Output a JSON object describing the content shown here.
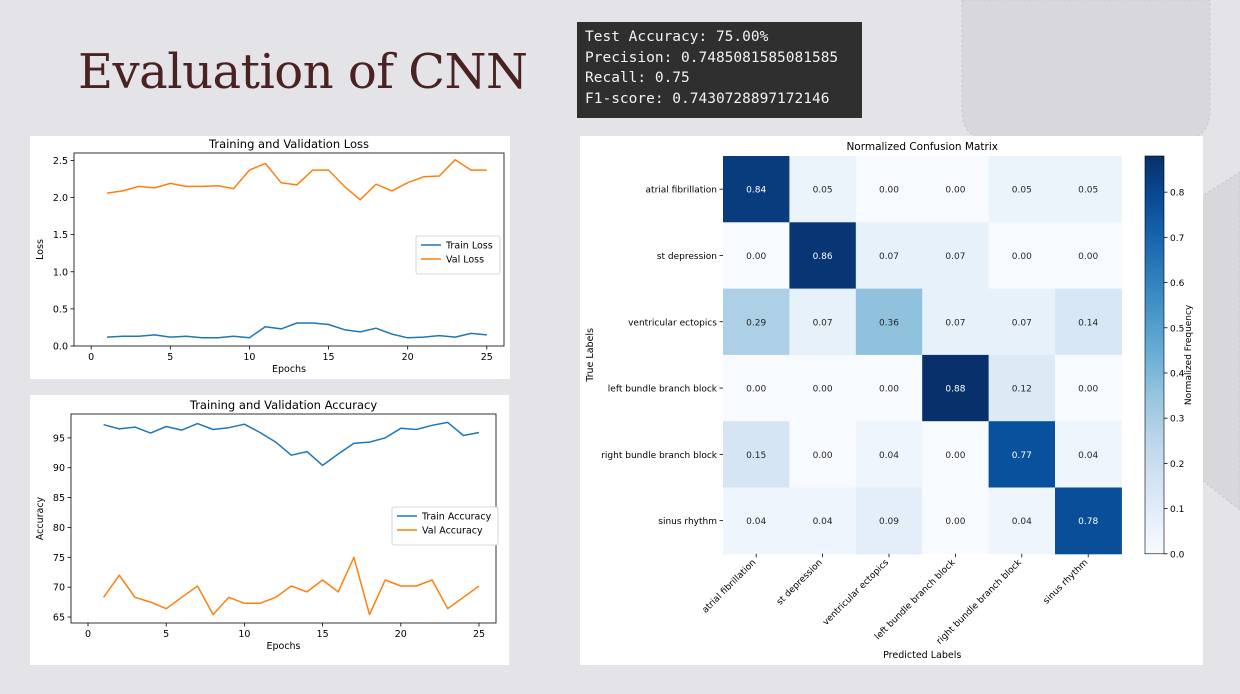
{
  "slide": {
    "title": "Evaluation of CNN"
  },
  "metrics": {
    "lines": [
      "Test Accuracy: 75.00%",
      "Precision: 0.7485081585081585",
      "Recall: 0.75",
      "F1-score: 0.7430728897172146"
    ]
  },
  "colors": {
    "train": "#1f77b4",
    "val": "#ff7f0e",
    "background": "#e4e4e8"
  },
  "chart_data": [
    {
      "type": "line",
      "title": "Training and Validation Loss",
      "xlabel": "Epochs",
      "ylabel": "Loss",
      "xlim": [
        0,
        25
      ],
      "ylim": [
        0,
        2.6
      ],
      "xticks": [
        0,
        5,
        10,
        15,
        20,
        25
      ],
      "yticks": [
        0.0,
        0.5,
        1.0,
        1.5,
        2.0,
        2.5
      ],
      "ytick_labels": [
        "0.0",
        "0.5",
        "1.0",
        "1.5",
        "2.0",
        "2.5"
      ],
      "legend": "center-right",
      "x": [
        1,
        2,
        3,
        4,
        5,
        6,
        7,
        8,
        9,
        10,
        11,
        12,
        13,
        14,
        15,
        16,
        17,
        18,
        19,
        20,
        21,
        22,
        23,
        24,
        25
      ],
      "series": [
        {
          "name": "Train Loss",
          "color": "#1f77b4",
          "values": [
            0.12,
            0.13,
            0.13,
            0.15,
            0.12,
            0.13,
            0.11,
            0.11,
            0.13,
            0.11,
            0.26,
            0.23,
            0.31,
            0.31,
            0.29,
            0.22,
            0.19,
            0.24,
            0.16,
            0.11,
            0.12,
            0.14,
            0.12,
            0.17,
            0.15
          ]
        },
        {
          "name": "Val Loss",
          "color": "#ff7f0e",
          "values": [
            2.06,
            2.09,
            2.15,
            2.13,
            2.19,
            2.15,
            2.15,
            2.16,
            2.12,
            2.37,
            2.46,
            2.2,
            2.17,
            2.37,
            2.37,
            2.15,
            1.97,
            2.18,
            2.09,
            2.2,
            2.28,
            2.29,
            2.51,
            2.37,
            2.37
          ]
        }
      ]
    },
    {
      "type": "line",
      "title": "Training and Validation Accuracy",
      "xlabel": "Epochs",
      "ylabel": "Accuracy",
      "xlim": [
        0,
        25
      ],
      "ylim": [
        64,
        99
      ],
      "xticks": [
        0,
        5,
        10,
        15,
        20,
        25
      ],
      "yticks": [
        65,
        70,
        75,
        80,
        85,
        90,
        95
      ],
      "ytick_labels": [
        "65",
        "70",
        "75",
        "80",
        "85",
        "90",
        "95"
      ],
      "legend": "center-right",
      "x": [
        1,
        2,
        3,
        4,
        5,
        6,
        7,
        8,
        9,
        10,
        11,
        12,
        13,
        14,
        15,
        16,
        17,
        18,
        19,
        20,
        21,
        22,
        23,
        24,
        25
      ],
      "series": [
        {
          "name": "Train Accuracy",
          "color": "#1f77b4",
          "values": [
            97.2,
            96.5,
            96.8,
            95.8,
            96.9,
            96.3,
            97.4,
            96.4,
            96.7,
            97.3,
            95.9,
            94.3,
            92.1,
            92.7,
            90.4,
            92.3,
            94.1,
            94.3,
            95.0,
            96.6,
            96.4,
            97.1,
            97.6,
            95.4,
            95.9
          ]
        },
        {
          "name": "Val Accuracy",
          "color": "#ff7f0e",
          "values": [
            68.3,
            72.0,
            68.3,
            67.5,
            66.4,
            68.3,
            70.2,
            65.4,
            68.3,
            67.3,
            67.3,
            68.3,
            70.2,
            69.2,
            71.2,
            69.2,
            75.0,
            65.4,
            71.2,
            70.2,
            70.2,
            71.2,
            66.4,
            68.3,
            70.2
          ]
        }
      ]
    },
    {
      "type": "heatmap",
      "title": "Normalized Confusion Matrix",
      "xlabel": "Predicted Labels",
      "ylabel": "True Labels",
      "colorbar_label": "Normalized Frequency",
      "colorbar_range": [
        0,
        0.88
      ],
      "colorbar_ticks": [
        0.0,
        0.1,
        0.2,
        0.3,
        0.4,
        0.5,
        0.6,
        0.7,
        0.8
      ],
      "colorbar_tick_labels": [
        "0.0",
        "0.1",
        "0.2",
        "0.3",
        "0.4",
        "0.5",
        "0.6",
        "0.7",
        "0.8"
      ],
      "colormap": "Blues",
      "labels": [
        "atrial fibrillation",
        "st depression",
        "ventricular ectopics",
        "left bundle branch block",
        "right bundle branch block",
        "sinus rhythm"
      ],
      "matrix": [
        [
          0.84,
          0.05,
          0.0,
          0.0,
          0.05,
          0.05
        ],
        [
          0.0,
          0.86,
          0.07,
          0.07,
          0.0,
          0.0
        ],
        [
          0.29,
          0.07,
          0.36,
          0.07,
          0.07,
          0.14
        ],
        [
          0.0,
          0.0,
          0.0,
          0.88,
          0.12,
          0.0
        ],
        [
          0.15,
          0.0,
          0.04,
          0.0,
          0.77,
          0.04
        ],
        [
          0.04,
          0.04,
          0.09,
          0.0,
          0.04,
          0.78
        ]
      ],
      "cell_labels": [
        [
          "0.84",
          "0.05",
          "0.00",
          "0.00",
          "0.05",
          "0.05"
        ],
        [
          "0.00",
          "0.86",
          "0.07",
          "0.07",
          "0.00",
          "0.00"
        ],
        [
          "0.29",
          "0.07",
          "0.36",
          "0.07",
          "0.07",
          "0.14"
        ],
        [
          "0.00",
          "0.00",
          "0.00",
          "0.88",
          "0.12",
          "0.00"
        ],
        [
          "0.15",
          "0.00",
          "0.04",
          "0.00",
          "0.77",
          "0.04"
        ],
        [
          "0.04",
          "0.04",
          "0.09",
          "0.00",
          "0.04",
          "0.78"
        ]
      ]
    }
  ]
}
